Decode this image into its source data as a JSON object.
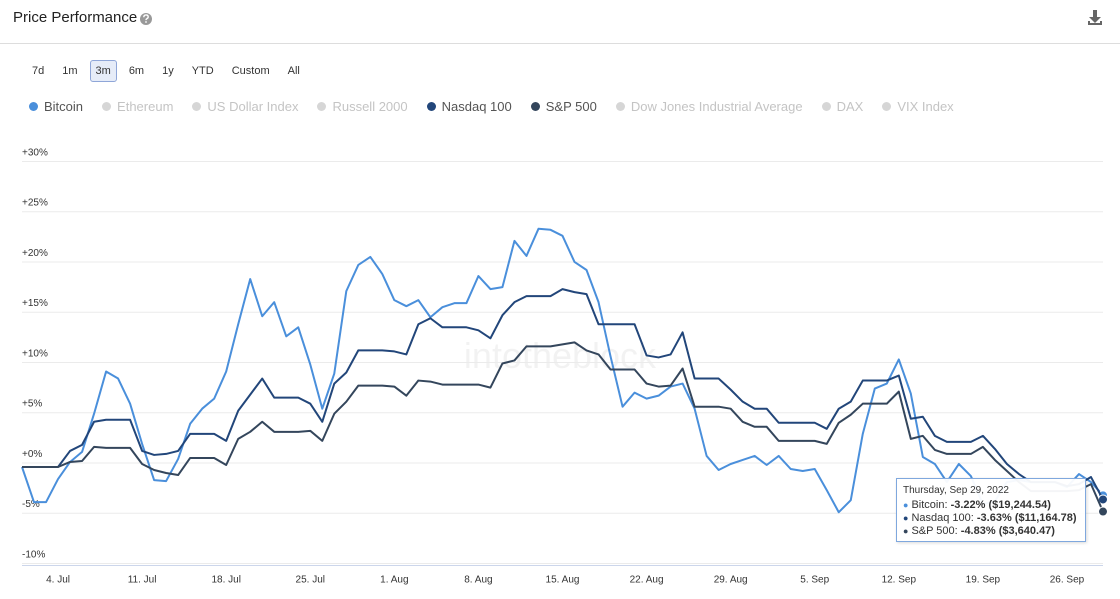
{
  "header": {
    "title": "Price Performance"
  },
  "range_buttons": [
    {
      "label": "7d"
    },
    {
      "label": "1m"
    },
    {
      "label": "3m",
      "active": true
    },
    {
      "label": "6m"
    },
    {
      "label": "1y"
    },
    {
      "label": "YTD"
    },
    {
      "label": "Custom"
    },
    {
      "label": "All"
    }
  ],
  "chart_data": {
    "type": "line",
    "watermark": "intotheblock",
    "categories": [
      null,
      null,
      null,
      "4. Jul",
      null,
      null,
      null,
      null,
      null,
      null,
      "11. Jul",
      null,
      null,
      null,
      null,
      null,
      null,
      "18. Jul",
      null,
      null,
      null,
      null,
      null,
      null,
      "25. Jul",
      null,
      null,
      null,
      null,
      null,
      null,
      "1. Aug",
      null,
      null,
      null,
      null,
      null,
      null,
      "8. Aug",
      null,
      null,
      null,
      null,
      null,
      null,
      "15. Aug",
      null,
      null,
      null,
      null,
      null,
      null,
      "22. Aug",
      null,
      null,
      null,
      null,
      null,
      null,
      "29. Aug",
      null,
      null,
      null,
      null,
      null,
      null,
      "5. Sep",
      null,
      null,
      null,
      null,
      null,
      null,
      "12. Sep",
      null,
      null,
      null,
      null,
      null,
      null,
      "19. Sep",
      null,
      null,
      null,
      null,
      null,
      null,
      "26. Sep",
      null,
      null,
      null
    ],
    "series": [
      {
        "name": "Bitcoin",
        "color": "#4a8fdb",
        "visible": true,
        "values": [
          -0.4,
          -3.9,
          -3.9,
          -1.6,
          0.1,
          1.1,
          4.9,
          9.1,
          8.4,
          5.9,
          1.9,
          -1.7,
          -1.8,
          0.4,
          3.9,
          5.4,
          6.4,
          9.1,
          13.8,
          18.3,
          14.6,
          16.0,
          12.6,
          13.5,
          9.8,
          5.4,
          8.9,
          17.1,
          19.7,
          20.5,
          18.8,
          16.2,
          15.6,
          16.2,
          14.5,
          15.5,
          15.9,
          15.9,
          18.6,
          17.3,
          17.5,
          22.1,
          20.6,
          23.3,
          23.2,
          22.6,
          20.0,
          19.2,
          16.0,
          10.6,
          5.6,
          7.0,
          6.4,
          6.7,
          7.6,
          7.9,
          5.4,
          0.7,
          -0.7,
          -0.1,
          0.3,
          0.7,
          -0.2,
          0.7,
          -0.6,
          -0.8,
          -0.6,
          -2.7,
          -4.9,
          -3.7,
          2.9,
          7.4,
          7.9,
          10.3,
          6.9,
          0.6,
          -0.1,
          -1.9,
          -0.1,
          -1.3,
          -4.1,
          -3.8,
          -1.9,
          -1.7,
          -1.9,
          -1.9,
          -1.9,
          -2.4,
          -1.1,
          -1.9,
          -3.22
        ]
      },
      {
        "name": "Ethereum",
        "visible": false
      },
      {
        "name": "US Dollar Index",
        "visible": false
      },
      {
        "name": "Russell 2000",
        "visible": false
      },
      {
        "name": "Nasdaq 100",
        "color": "#22467a",
        "visible": true,
        "values": [
          -0.4,
          -0.4,
          -0.4,
          -0.4,
          1.2,
          1.8,
          4.1,
          4.3,
          4.3,
          4.3,
          1.2,
          0.8,
          0.9,
          1.2,
          2.9,
          2.9,
          2.9,
          2.2,
          5.2,
          6.8,
          8.4,
          6.5,
          6.5,
          6.5,
          5.9,
          4.1,
          7.9,
          9.0,
          11.2,
          11.2,
          11.2,
          11.1,
          10.8,
          13.8,
          14.4,
          13.5,
          13.5,
          13.5,
          13.2,
          12.4,
          14.7,
          16.0,
          16.6,
          16.6,
          16.6,
          17.3,
          17.0,
          16.8,
          13.8,
          13.8,
          13.8,
          13.8,
          10.7,
          10.5,
          10.8,
          13.0,
          8.4,
          8.4,
          8.4,
          7.3,
          6.1,
          5.4,
          5.4,
          4.0,
          4.0,
          4.0,
          4.0,
          3.4,
          5.4,
          6.1,
          8.2,
          8.2,
          8.2,
          8.7,
          4.4,
          4.6,
          2.7,
          2.1,
          2.1,
          2.1,
          2.7,
          1.4,
          -0.1,
          -1.1,
          -1.9,
          -1.9,
          -1.9,
          -2.3,
          -2.1,
          -1.4,
          -3.63
        ]
      },
      {
        "name": "S&P 500",
        "color": "#34465c",
        "visible": true,
        "values": [
          -0.4,
          -0.4,
          -0.4,
          -0.4,
          0.1,
          0.2,
          1.6,
          1.5,
          1.5,
          1.5,
          -0.1,
          -0.7,
          -1.0,
          -1.2,
          0.5,
          0.5,
          0.5,
          -0.2,
          2.4,
          3.1,
          4.1,
          3.1,
          3.1,
          3.1,
          3.2,
          2.2,
          4.9,
          6.1,
          7.7,
          7.7,
          7.7,
          7.6,
          6.7,
          8.2,
          8.1,
          7.8,
          7.8,
          7.8,
          7.8,
          7.5,
          9.9,
          10.2,
          11.6,
          11.6,
          11.6,
          11.8,
          12.0,
          11.2,
          10.8,
          9.3,
          9.3,
          9.3,
          7.9,
          7.6,
          7.7,
          9.4,
          5.6,
          5.6,
          5.6,
          5.4,
          4.1,
          3.6,
          3.6,
          2.2,
          2.2,
          2.2,
          2.2,
          1.9,
          4.0,
          4.8,
          5.9,
          5.9,
          5.9,
          7.1,
          2.4,
          2.7,
          1.3,
          0.9,
          0.9,
          0.9,
          1.6,
          0.3,
          -0.8,
          -1.9,
          -2.8,
          -2.8,
          -2.8,
          -2.8,
          -2.7,
          -2.1,
          -4.83
        ]
      },
      {
        "name": "Dow Jones Industrial Average",
        "visible": false
      },
      {
        "name": "DAX",
        "visible": false
      },
      {
        "name": "VIX Index",
        "visible": false
      }
    ],
    "ylim": [
      -10.2,
      31
    ],
    "yticks": [
      {
        "value": 30,
        "label": "+30%"
      },
      {
        "value": 25,
        "label": "+25%"
      },
      {
        "value": 20,
        "label": "+20%"
      },
      {
        "value": 15,
        "label": "+15%"
      },
      {
        "value": 10,
        "label": "+10%"
      },
      {
        "value": 5,
        "label": "+5%"
      },
      {
        "value": 0,
        "label": "+0%"
      },
      {
        "value": -5,
        "label": "-5%"
      },
      {
        "value": -10,
        "label": "-10%"
      }
    ],
    "grid": true,
    "tooltip": {
      "title": "Thursday, Sep 29, 2022",
      "rows": [
        {
          "name": "Bitcoin:",
          "color": "#4a8fdb",
          "change": "-3.22%",
          "price": "($19,244.54)"
        },
        {
          "name": "Nasdaq 100:",
          "color": "#22467a",
          "change": "-3.63%",
          "price": "($11,164.78)"
        },
        {
          "name": "S&P 500:",
          "color": "#34465c",
          "change": "-4.83%",
          "price": "($3,640.47)"
        }
      ]
    }
  }
}
